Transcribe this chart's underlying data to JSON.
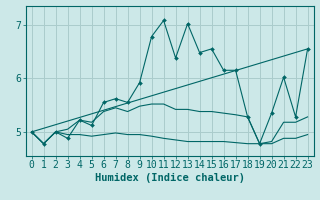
{
  "title": "",
  "xlabel": "Humidex (Indice chaleur)",
  "ylabel": "",
  "bg_color": "#cce8e8",
  "grid_color": "#aacccc",
  "line_color": "#006666",
  "xlim": [
    -0.5,
    23.5
  ],
  "ylim": [
    4.55,
    7.35
  ],
  "yticks": [
    5,
    6,
    7
  ],
  "xticks": [
    0,
    1,
    2,
    3,
    4,
    5,
    6,
    7,
    8,
    9,
    10,
    11,
    12,
    13,
    14,
    15,
    16,
    17,
    18,
    19,
    20,
    21,
    22,
    23
  ],
  "lines": [
    {
      "x": [
        0,
        1,
        2,
        3,
        4,
        5,
        6,
        7,
        8,
        9,
        10,
        11,
        12,
        13,
        14,
        15,
        16,
        17,
        18,
        19,
        20,
        21,
        22,
        23
      ],
      "y": [
        5.0,
        4.78,
        5.0,
        4.88,
        5.22,
        5.12,
        5.55,
        5.62,
        5.55,
        5.92,
        6.78,
        7.08,
        6.38,
        7.02,
        6.48,
        6.55,
        6.15,
        6.15,
        5.28,
        4.78,
        5.35,
        6.02,
        5.28,
        6.55
      ],
      "marker": true
    },
    {
      "x": [
        0,
        23
      ],
      "y": [
        5.0,
        6.55
      ],
      "marker": false
    },
    {
      "x": [
        0,
        1,
        2,
        3,
        4,
        5,
        6,
        7,
        8,
        9,
        10,
        11,
        12,
        13,
        14,
        15,
        16,
        17,
        18,
        19,
        20,
        21,
        22,
        23
      ],
      "y": [
        5.0,
        4.78,
        5.0,
        5.05,
        5.22,
        5.18,
        5.38,
        5.45,
        5.38,
        5.48,
        5.52,
        5.52,
        5.42,
        5.42,
        5.38,
        5.38,
        5.35,
        5.32,
        5.28,
        4.78,
        4.82,
        5.18,
        5.18,
        5.28
      ],
      "marker": false
    },
    {
      "x": [
        0,
        1,
        2,
        3,
        4,
        5,
        6,
        7,
        8,
        9,
        10,
        11,
        12,
        13,
        14,
        15,
        16,
        17,
        18,
        19,
        20,
        21,
        22,
        23
      ],
      "y": [
        5.0,
        4.78,
        5.0,
        4.95,
        4.95,
        4.92,
        4.95,
        4.98,
        4.95,
        4.95,
        4.92,
        4.88,
        4.85,
        4.82,
        4.82,
        4.82,
        4.82,
        4.8,
        4.78,
        4.78,
        4.78,
        4.88,
        4.88,
        4.95
      ],
      "marker": false
    }
  ],
  "xlabel_fontsize": 7.5,
  "xlabel_fontfamily": "monospace",
  "tick_fontsize": 7,
  "tick_fontfamily": "monospace"
}
